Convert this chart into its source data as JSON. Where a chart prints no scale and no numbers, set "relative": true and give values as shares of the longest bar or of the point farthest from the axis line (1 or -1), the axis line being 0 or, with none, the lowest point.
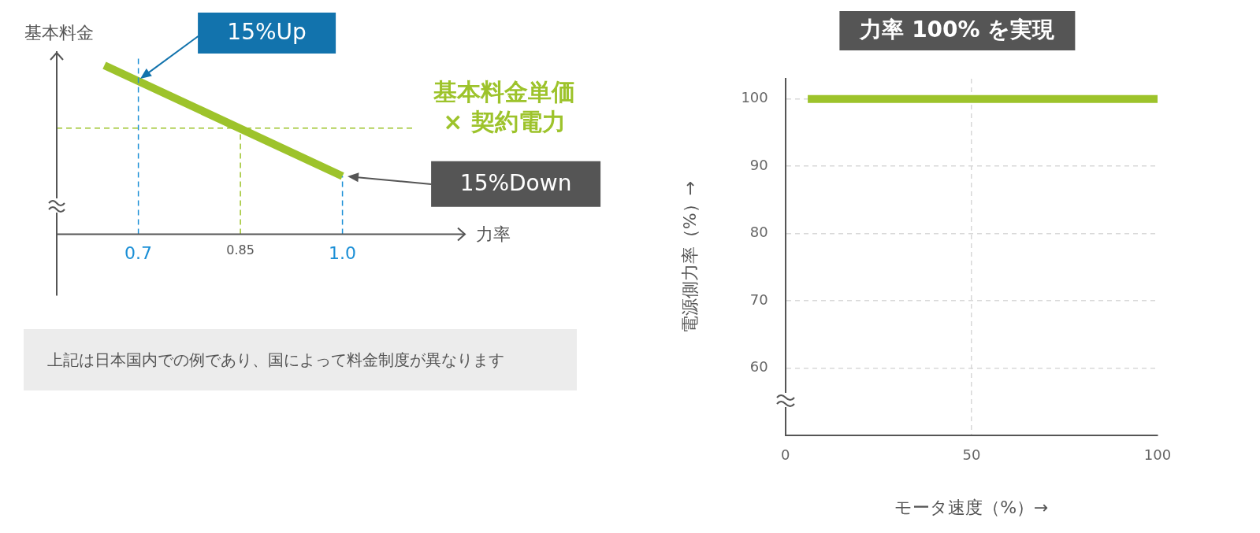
{
  "chart_data": [
    {
      "type": "line",
      "relative": true,
      "xlabel": "力率",
      "ylabel": "基本料金",
      "xlim": [
        0.58,
        1.18
      ],
      "xticks": [
        0.7,
        0.85,
        {
          "value": 1,
          "label": "1.0"
        }
      ],
      "grid": false,
      "legend": false,
      "marker": "none",
      "line_style": "solid",
      "series": [
        {
          "color": "#9dc32b",
          "x": [
            0.65,
            1.0
          ],
          "values": [
            1,
            0.344
          ]
        }
      ],
      "ref_lines": [
        {
          "axis": "x",
          "value": 0.7,
          "color": "#1b8fd6",
          "line_style": "dashed"
        },
        {
          "axis": "x",
          "value": 0.85,
          "color": "#9dc32b",
          "line_style": "dashed"
        },
        {
          "axis": "x",
          "value": 1.0,
          "color": "#1b8fd6",
          "line_style": "dashed"
        },
        {
          "axis": "y",
          "value": 0.628,
          "color": "#9dc32b",
          "line_style": "dashed",
          "label": "基本料金単価 × 契約電力"
        }
      ],
      "annotations": [
        "15%Up",
        "15%Down",
        "上記は日本国内での例であり、国によって料金制度が異なります"
      ]
    },
    {
      "type": "line",
      "title": "力率 100% を実現",
      "xlabel": "モータ速度（%）→",
      "ylabel": "電源側力率（%）→",
      "xlim": [
        0,
        100
      ],
      "xticks": [
        0,
        50,
        100
      ],
      "ylim": [
        50,
        103
      ],
      "yticks": [
        60,
        70,
        80,
        90,
        100
      ],
      "grid": true,
      "legend": false,
      "marker": "none",
      "line_style": "solid",
      "series": [
        {
          "color": "#9dc32b",
          "x": [
            6,
            100
          ],
          "values": [
            100,
            100
          ]
        }
      ]
    }
  ]
}
